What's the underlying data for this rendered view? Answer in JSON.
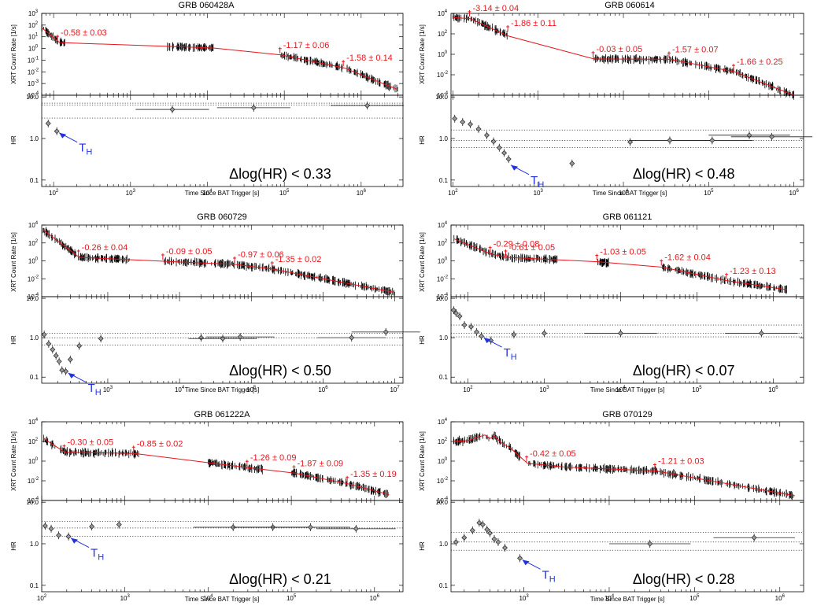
{
  "figure": {
    "xlabel": "Time Since BAT Trigger [s]",
    "ylabel_top": "XRT Count Rate [1/s]",
    "ylabel_bottom": "HR",
    "th_label": "T",
    "th_sub": "H",
    "colors": {
      "model": "#e8141c",
      "data": "#000000",
      "arrow": "#2233dd",
      "text": "#000000"
    }
  },
  "chart_data": [
    {
      "type": "scatter",
      "title": "GRB 060428A",
      "x_log": true,
      "xlim": [
        70,
        3500000
      ],
      "x_ticks": [
        "10^3",
        "10^4",
        "10^5",
        "10^6"
      ],
      "top_ylim": [
        0.0001,
        1000
      ],
      "top_ytick_exps": [
        -4,
        -3,
        -2,
        -1,
        0,
        1,
        2,
        3
      ],
      "bottom_ylim": [
        0.07,
        11
      ],
      "model": [
        [
          70,
          60
        ],
        [
          120,
          3.2
        ],
        [
          12000,
          1.1
        ],
        [
          90000,
          0.28
        ],
        [
          600000,
          0.022
        ],
        [
          3000000,
          0.0003
        ]
      ],
      "dense": [
        [
          70,
          140,
          0.35
        ],
        [
          3000,
          12000,
          0.2
        ],
        [
          90000,
          3000000,
          0.25
        ]
      ],
      "annotations": [
        {
          "text": "-0.58 ± 0.03",
          "x": 115,
          "y": 3.2
        },
        {
          "text": "-1.17 ± 0.06",
          "x": 90000,
          "y": 0.28
        },
        {
          "text": "-1.58 ± 0.14",
          "x": 600000,
          "y": 0.022
        }
      ],
      "hr_points": [
        [
          85,
          2.3
        ],
        [
          110,
          1.5
        ],
        [
          3500,
          5
        ],
        [
          40000,
          5.5
        ],
        [
          1200000,
          6.2
        ]
      ],
      "hr_bands": [
        3.1,
        6.4,
        7.1
      ],
      "th": {
        "x": 110,
        "y": 1.5
      },
      "dhr": "Δlog(HR) < 0.33"
    },
    {
      "type": "scatter",
      "title": "GRB 060614",
      "x_log": true,
      "xlim": [
        95,
        1300000
      ],
      "x_ticks": [
        "10^2",
        "10^3",
        "10^4",
        "10^5",
        "10^6"
      ],
      "top_ylim": [
        0.0001,
        10000
      ],
      "top_ytick_exps": [
        -4,
        -2,
        0,
        2,
        4
      ],
      "bottom_ylim": [
        0.07,
        11
      ],
      "model": [
        [
          100,
          4000
        ],
        [
          160,
          3000
        ],
        [
          450,
          60
        ],
        [
          4500,
          0.35
        ],
        [
          35000,
          0.32
        ],
        [
          200000,
          0.02
        ],
        [
          1000000,
          0.0001
        ]
      ],
      "dense": [
        [
          100,
          450,
          0.5
        ],
        [
          4500,
          35000,
          0.35
        ],
        [
          35000,
          1000000,
          0.3
        ]
      ],
      "annotations": [
        {
          "text": "-3.14 ± 0.04",
          "x": 160,
          "y": 3500
        },
        {
          "text": "-1.86 ± 0.11",
          "x": 450,
          "y": 120
        },
        {
          "text": "-0.03 ± 0.05",
          "x": 4500,
          "y": 0.35
        },
        {
          "text": "-1.57 ± 0.07",
          "x": 35000,
          "y": 0.32
        },
        {
          "text": "-1.66 ± 0.25",
          "x": 200000,
          "y": 0.02
        }
      ],
      "hr_points": [
        [
          105,
          3
        ],
        [
          130,
          2.5
        ],
        [
          160,
          2.2
        ],
        [
          200,
          1.7
        ],
        [
          250,
          1.2
        ],
        [
          300,
          0.85
        ],
        [
          350,
          0.6
        ],
        [
          400,
          0.45
        ],
        [
          450,
          0.32
        ],
        [
          2500,
          0.25
        ],
        [
          12000,
          0.82
        ],
        [
          35000,
          0.9
        ],
        [
          110000,
          0.9
        ],
        [
          300000,
          1.2
        ],
        [
          550000,
          1.1
        ]
      ],
      "hr_bands": [
        0.6,
        0.9,
        1.6
      ],
      "th": {
        "x": 450,
        "y": 0.25
      },
      "dhr": "Δlog(HR) < 0.48"
    },
    {
      "type": "scatter",
      "title": "GRB 060729",
      "x_log": true,
      "xlim": [
        120,
        13000000
      ],
      "x_ticks": [
        "10^3",
        "10^4",
        "10^5",
        "10^6",
        "10^7"
      ],
      "top_ylim": [
        0.0001,
        10000
      ],
      "top_ytick_exps": [
        -4,
        -2,
        0,
        2,
        4
      ],
      "bottom_ylim": [
        0.07,
        11
      ],
      "model": [
        [
          125,
          3000
        ],
        [
          400,
          2.5
        ],
        [
          6000,
          0.9
        ],
        [
          60000,
          0.4
        ],
        [
          200000,
          0.12
        ],
        [
          10000000,
          0.0003
        ]
      ],
      "dense": [
        [
          125,
          400,
          0.45
        ],
        [
          400,
          2000,
          0.3
        ],
        [
          6000,
          10000000,
          0.3
        ]
      ],
      "annotations": [
        {
          "text": "-0.26 ± 0.04",
          "x": 400,
          "y": 2.5
        },
        {
          "text": "-0.09 ± 0.05",
          "x": 6000,
          "y": 0.9
        },
        {
          "text": "-0.97 ± 0.06",
          "x": 60000,
          "y": 0.4
        },
        {
          "text": "-1.35 ± 0.02",
          "x": 200000,
          "y": 0.12
        }
      ],
      "hr_points": [
        [
          130,
          1.2
        ],
        [
          150,
          0.7
        ],
        [
          170,
          0.5
        ],
        [
          190,
          0.35
        ],
        [
          210,
          0.25
        ],
        [
          230,
          0.15
        ],
        [
          260,
          0.14
        ],
        [
          300,
          0.28
        ],
        [
          400,
          0.62
        ],
        [
          800,
          0.95
        ],
        [
          20000,
          1
        ],
        [
          40000,
          0.95
        ],
        [
          70000,
          1.05
        ],
        [
          2500000,
          1
        ],
        [
          7500000,
          1.4
        ]
      ],
      "hr_bands": [
        0.65,
        1.0,
        1.3
      ],
      "th": {
        "x": 260,
        "y": 0.14
      },
      "dhr": "Δlog(HR) < 0.50"
    },
    {
      "type": "scatter",
      "title": "GRB 061121",
      "x_log": true,
      "xlim": [
        60,
        2500000
      ],
      "x_ticks": [
        "10^2",
        "10^3",
        "10^4",
        "10^5",
        "10^6"
      ],
      "top_ylim": [
        0.0001,
        10000
      ],
      "top_ytick_exps": [
        -4,
        -2,
        0,
        2,
        4
      ],
      "bottom_ylim": [
        0.07,
        11
      ],
      "model": [
        [
          65,
          300
        ],
        [
          200,
          6
        ],
        [
          320,
          2.5
        ],
        [
          5000,
          0.8
        ],
        [
          35000,
          0.2
        ],
        [
          250000,
          0.006
        ],
        [
          1500000,
          0.0006
        ]
      ],
      "dense": [
        [
          65,
          1500,
          0.45
        ],
        [
          5000,
          7000,
          0.35
        ],
        [
          35000,
          1500000,
          0.3
        ]
      ],
      "annotations": [
        {
          "text": "-0.29 ± 0.08",
          "x": 200,
          "y": 6
        },
        {
          "text": "-0.61 ± 0.05",
          "x": 320,
          "y": 2.5
        },
        {
          "text": "-1.03 ± 0.05",
          "x": 5000,
          "y": 0.8
        },
        {
          "text": "-1.62 ± 0.04",
          "x": 35000,
          "y": 0.2
        },
        {
          "text": "-1.23 ± 0.13",
          "x": 250000,
          "y": 0.006
        }
      ],
      "hr_points": [
        [
          65,
          5
        ],
        [
          70,
          4.2
        ],
        [
          78,
          3.5
        ],
        [
          90,
          2.1
        ],
        [
          110,
          1.9
        ],
        [
          130,
          1.4
        ],
        [
          150,
          1.1
        ],
        [
          200,
          0.85
        ],
        [
          400,
          1.2
        ],
        [
          1000,
          1.3
        ],
        [
          10000,
          1.3
        ],
        [
          700000,
          1.3
        ]
      ],
      "hr_bands": [
        1.05,
        1.3,
        2.1
      ],
      "th": {
        "x": 150,
        "y": 1.1
      },
      "dhr": "Δlog(HR) < 0.07"
    },
    {
      "type": "scatter",
      "title": "GRB 061222A",
      "x_log": true,
      "xlim": [
        100,
        2200000
      ],
      "x_ticks": [
        "10^2",
        "10^3",
        "10^4",
        "10^5",
        "10^6"
      ],
      "top_ylim": [
        0.0001,
        10000
      ],
      "top_ytick_exps": [
        -4,
        -2,
        0,
        2,
        4
      ],
      "bottom_ylim": [
        0.07,
        11
      ],
      "model": [
        [
          105,
          200
        ],
        [
          190,
          8
        ],
        [
          1300,
          6
        ],
        [
          30000,
          0.22
        ],
        [
          110000,
          0.06
        ],
        [
          480000,
          0.005
        ],
        [
          1500000,
          0.0004
        ]
      ],
      "dense": [
        [
          105,
          1500,
          0.45
        ],
        [
          10000,
          45000,
          0.35
        ],
        [
          100000,
          1500000,
          0.3
        ]
      ],
      "annotations": [
        {
          "text": "-0.30 ± 0.05",
          "x": 190,
          "y": 8
        },
        {
          "text": "-0.85 ± 0.02",
          "x": 1300,
          "y": 6
        },
        {
          "text": "-1.26 ± 0.09",
          "x": 30000,
          "y": 0.22
        },
        {
          "text": "-1.87 ± 0.09",
          "x": 110000,
          "y": 0.06
        },
        {
          "text": "-1.35 ± 0.19",
          "x": 480000,
          "y": 0.005
        }
      ],
      "hr_points": [
        [
          110,
          2.7
        ],
        [
          130,
          2.3
        ],
        [
          160,
          1.6
        ],
        [
          210,
          1.5
        ],
        [
          400,
          2.6
        ],
        [
          850,
          2.9
        ],
        [
          20000,
          2.5
        ],
        [
          60000,
          2.5
        ],
        [
          170000,
          2.5
        ],
        [
          600000,
          2.3
        ]
      ],
      "hr_bands": [
        1.5,
        2.4,
        3.5
      ],
      "th": {
        "x": 210,
        "y": 1.5
      },
      "dhr": "Δlog(HR) < 0.21"
    },
    {
      "type": "scatter",
      "title": "GRB 070129",
      "x_log": true,
      "xlim": [
        140,
        1900000
      ],
      "x_ticks": [
        "10^3",
        "10^4",
        "10^5",
        "10^6"
      ],
      "top_ylim": [
        0.0001,
        10000
      ],
      "top_ytick_exps": [
        -4,
        -2,
        0,
        2,
        4
      ],
      "bottom_ylim": [
        0.07,
        11
      ],
      "model": [
        [
          150,
          100
        ],
        [
          220,
          120
        ],
        [
          280,
          250
        ],
        [
          350,
          450
        ],
        [
          400,
          200
        ],
        [
          450,
          350
        ],
        [
          550,
          70
        ],
        [
          700,
          20
        ],
        [
          1100,
          0.6
        ],
        [
          3000,
          0.25
        ],
        [
          35000,
          0.1
        ],
        [
          1500000,
          0.0003
        ]
      ],
      "dense": [
        [
          150,
          900,
          0.5
        ],
        [
          1100,
          1500000,
          0.3
        ]
      ],
      "annotations": [
        {
          "text": "-0.42 ± 0.05",
          "x": 1100,
          "y": 0.6
        },
        {
          "text": "-1.21 ± 0.03",
          "x": 35000,
          "y": 0.1
        }
      ],
      "hr_points": [
        [
          160,
          1.1
        ],
        [
          200,
          1.4
        ],
        [
          250,
          2.1
        ],
        [
          300,
          3.2
        ],
        [
          330,
          2.9
        ],
        [
          370,
          2.2
        ],
        [
          400,
          1.8
        ],
        [
          450,
          1.3
        ],
        [
          500,
          1.1
        ],
        [
          600,
          0.8
        ],
        [
          900,
          0.45
        ],
        [
          30000,
          1
        ],
        [
          500000,
          1.4
        ]
      ],
      "hr_bands": [
        0.7,
        1.1,
        1.9
      ],
      "th": {
        "x": 900,
        "y": 0.45
      },
      "dhr": "Δlog(HR) < 0.28"
    }
  ]
}
